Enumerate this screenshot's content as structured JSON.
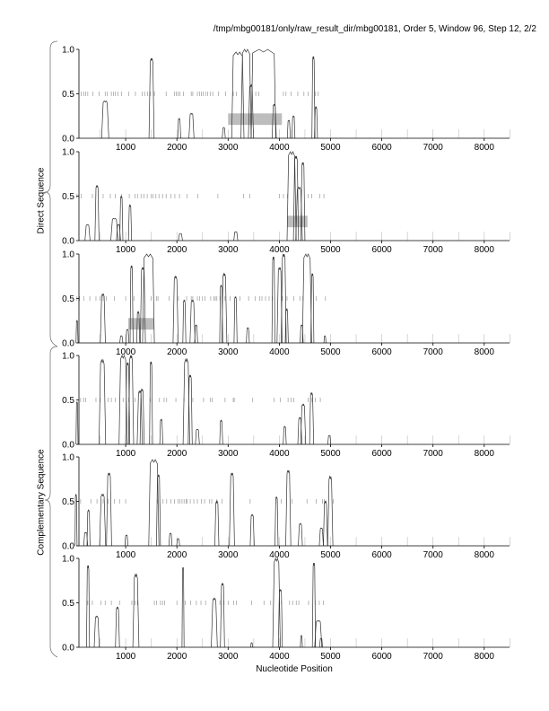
{
  "chart_data": {
    "type": "line",
    "title": "/tmp/mbg00181/only/raw_result_dir/mbg00181, Order 5, Window 96, Step 12, 2/2",
    "xlabel": "Nucleotide Position",
    "group_labels": [
      "Direct Sequence",
      "Complementary Sequence"
    ],
    "xlim": [
      1,
      8500
    ],
    "ylim": [
      0,
      1
    ],
    "xticks": [
      1000,
      2000,
      3000,
      4000,
      5000,
      6000,
      7000,
      8000
    ],
    "xtick_labels": [
      "1000",
      "2000",
      "3000",
      "4000",
      "5000",
      "6000",
      "7000",
      "8000"
    ],
    "yticks": [
      0,
      0.5,
      1
    ],
    "ytick_labels": [
      "0.0",
      "0.5",
      "1.0"
    ],
    "colors": {
      "line": "#333333",
      "box": "#bdbdbd",
      "tick": "#999999"
    },
    "panels": [
      {
        "name": "direct-frame-1",
        "highlight": [
          3000,
          4050
        ],
        "peaks": [
          [
            560,
            640,
            0.42
          ],
          [
            1480,
            1530,
            0.9
          ],
          [
            2030,
            2060,
            0.22
          ],
          [
            2260,
            2310,
            0.28
          ],
          [
            2900,
            2930,
            0.12
          ],
          [
            3100,
            3280,
            0.97
          ],
          [
            3280,
            3420,
            1.0
          ],
          [
            3420,
            3470,
            0.6
          ],
          [
            3480,
            3900,
            1.0
          ],
          [
            3880,
            3920,
            0.38
          ],
          [
            4170,
            4200,
            0.2
          ],
          [
            4260,
            4290,
            0.25
          ],
          [
            4650,
            4680,
            0.92
          ],
          [
            4700,
            4730,
            0.35
          ]
        ],
        "ticks": [
          130,
          180,
          220,
          260,
          360,
          480,
          600,
          640,
          720,
          760,
          800,
          850,
          920,
          1060,
          1190,
          1320,
          1370,
          1430,
          1480,
          1560,
          1790,
          1950,
          1990,
          2020,
          2060,
          2130,
          2280,
          2310,
          2400,
          2440,
          2480,
          2510,
          2560,
          2600,
          2650,
          2700,
          2810,
          2950,
          3100,
          3160,
          3540,
          3600,
          4080,
          4130,
          4230,
          4360,
          4480,
          4560,
          4700,
          4760
        ]
      },
      {
        "name": "direct-frame-2",
        "highlight": [
          4150,
          4550
        ],
        "peaks": [
          [
            230,
            280,
            0.18
          ],
          [
            420,
            460,
            0.62
          ],
          [
            740,
            820,
            0.25
          ],
          [
            840,
            880,
            0.18
          ],
          [
            900,
            930,
            0.5
          ],
          [
            1070,
            1100,
            0.4
          ],
          [
            2050,
            2090,
            0.08
          ],
          [
            3130,
            3170,
            0.1
          ],
          [
            4180,
            4300,
            1.0
          ],
          [
            4300,
            4350,
            0.95
          ],
          [
            4350,
            4420,
            0.6
          ],
          [
            4440,
            4480,
            0.88
          ]
        ],
        "ticks": [
          50,
          90,
          130,
          350,
          560,
          700,
          800,
          920,
          1070,
          1180,
          1230,
          1300,
          1360,
          1420,
          1500,
          1530,
          1590,
          1650,
          1720,
          1790,
          1880,
          1960,
          2050,
          2200,
          2410,
          2800,
          3300,
          3420,
          4000,
          4080,
          4160,
          4560,
          4630,
          4790,
          4870
        ]
      },
      {
        "name": "direct-frame-3",
        "highlight": [
          1050,
          1550
        ],
        "peaks": [
          [
            40,
            60,
            0.25
          ],
          [
            530,
            580,
            0.55
          ],
          [
            900,
            930,
            0.08
          ],
          [
            1020,
            1050,
            0.15
          ],
          [
            1100,
            1130,
            0.87
          ],
          [
            1230,
            1260,
            0.35
          ],
          [
            1310,
            1360,
            0.85
          ],
          [
            1360,
            1530,
            1.0
          ],
          [
            1950,
            2000,
            0.75
          ],
          [
            2130,
            2160,
            0.48
          ],
          [
            2280,
            2330,
            0.48
          ],
          [
            2360,
            2390,
            0.2
          ],
          [
            2850,
            2880,
            0.65
          ],
          [
            2900,
            2950,
            0.78
          ],
          [
            3130,
            3160,
            0.52
          ],
          [
            3370,
            3400,
            0.17
          ],
          [
            3870,
            3900,
            0.97
          ],
          [
            3980,
            4030,
            0.85
          ],
          [
            4060,
            4110,
            1.0
          ],
          [
            4130,
            4160,
            0.38
          ],
          [
            4420,
            4450,
            0.2
          ],
          [
            4480,
            4600,
            1.0
          ],
          [
            4630,
            4660,
            0.78
          ],
          [
            4880,
            4900,
            0.08
          ]
        ],
        "ticks": [
          50,
          100,
          180,
          300,
          420,
          500,
          560,
          620,
          780,
          1000,
          1160,
          1500,
          1600,
          1630,
          1850,
          2030,
          2190,
          2280,
          2310,
          2400,
          2440,
          2500,
          2550,
          2660,
          2720,
          2750,
          2780,
          2840,
          2940,
          3040,
          3230,
          3400,
          3530,
          3620,
          3660,
          3730,
          3800,
          3860,
          4060,
          4150,
          4280,
          4400,
          4460,
          4720,
          4900
        ]
      },
      {
        "name": "complementary-frame-1",
        "highlight": null,
        "peaks": [
          [
            40,
            60,
            0.48
          ],
          [
            510,
            580,
            0.95
          ],
          [
            900,
            1000,
            1.0
          ],
          [
            1020,
            1060,
            0.92
          ],
          [
            1080,
            1130,
            1.0
          ],
          [
            1250,
            1300,
            0.6
          ],
          [
            1300,
            1340,
            0.62
          ],
          [
            1480,
            1510,
            0.93
          ],
          [
            1680,
            1710,
            0.28
          ],
          [
            2150,
            2220,
            0.96
          ],
          [
            2240,
            2280,
            0.78
          ],
          [
            2380,
            2420,
            0.17
          ],
          [
            2850,
            2880,
            0.27
          ],
          [
            4090,
            4120,
            0.2
          ],
          [
            4380,
            4420,
            0.3
          ],
          [
            4440,
            4490,
            0.45
          ],
          [
            4610,
            4650,
            0.58
          ],
          [
            4960,
            4990,
            0.1
          ]
        ],
        "ticks": [
          120,
          180,
          220,
          420,
          500,
          660,
          720,
          800,
          950,
          1060,
          1180,
          1480,
          1660,
          1750,
          1800,
          1980,
          2140,
          2310,
          2520,
          2650,
          2690,
          2940,
          3100,
          3120,
          3480,
          3900,
          4020,
          4170,
          4230,
          4280,
          4560,
          4640,
          4700,
          4800
        ]
      },
      {
        "name": "complementary-frame-2",
        "highlight": null,
        "peaks": [
          [
            20,
            40,
            0.58
          ],
          [
            200,
            240,
            0.15
          ],
          [
            260,
            290,
            0.4
          ],
          [
            520,
            580,
            0.58
          ],
          [
            650,
            700,
            0.82
          ],
          [
            1000,
            1030,
            0.12
          ],
          [
            1480,
            1620,
            0.97
          ],
          [
            1620,
            1660,
            0.8
          ],
          [
            1860,
            1890,
            0.14
          ],
          [
            2010,
            2040,
            0.08
          ],
          [
            2760,
            2800,
            0.5
          ],
          [
            3050,
            3100,
            0.82
          ],
          [
            3450,
            3490,
            0.35
          ],
          [
            3930,
            3960,
            0.55
          ],
          [
            4150,
            4200,
            0.85
          ],
          [
            4390,
            4430,
            0.25
          ],
          [
            4800,
            4840,
            0.2
          ],
          [
            4880,
            4920,
            0.5
          ],
          [
            4970,
            5020,
            0.78
          ]
        ],
        "ticks": [
          120,
          320,
          440,
          560,
          660,
          780,
          880,
          1000,
          1620,
          1730,
          1800,
          1880,
          1950,
          2020,
          2060,
          2100,
          2140,
          2180,
          2200,
          2260,
          2330,
          2400,
          2480,
          2540,
          2640,
          2680,
          2780,
          2880,
          3430,
          3960,
          4040,
          4250,
          4540,
          4720,
          4840,
          4880,
          5050
        ]
      },
      {
        "name": "complementary-frame-3",
        "highlight": null,
        "peaks": [
          [
            250,
            280,
            0.92
          ],
          [
            410,
            460,
            0.35
          ],
          [
            820,
            860,
            0.45
          ],
          [
            1170,
            1230,
            0.82
          ],
          [
            2110,
            2130,
            0.9
          ],
          [
            2700,
            2760,
            0.55
          ],
          [
            2870,
            2910,
            0.72
          ],
          [
            3450,
            3470,
            0.05
          ],
          [
            3900,
            3990,
            1.0
          ],
          [
            4000,
            4040,
            0.65
          ],
          [
            4420,
            4440,
            0.13
          ],
          [
            4660,
            4690,
            0.95
          ],
          [
            4720,
            4800,
            0.3
          ],
          [
            4800,
            4830,
            0.1
          ]
        ],
        "ticks": [
          260,
          350,
          520,
          600,
          720,
          880,
          1120,
          1180,
          1230,
          1560,
          1600,
          1680,
          1720,
          1760,
          2000,
          2160,
          2270,
          2380,
          2470,
          2560,
          2840,
          2920,
          3000,
          3110,
          3160,
          3460,
          3700,
          3830,
          4040,
          4200,
          4260,
          4330,
          4380,
          4570,
          4700,
          4780,
          4860
        ]
      }
    ]
  }
}
